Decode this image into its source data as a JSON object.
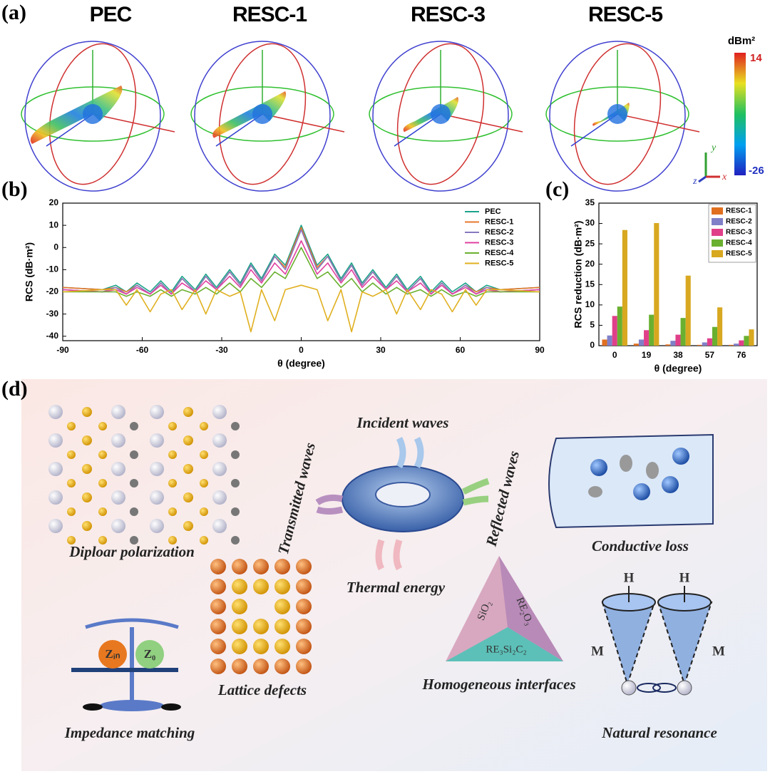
{
  "panel_labels": [
    "(a)",
    "(b)",
    "(c)",
    "(d)"
  ],
  "panel_a": {
    "titles": [
      "PEC",
      "RESC-1",
      "RESC-3",
      "RESC-5"
    ],
    "colorbar": {
      "label": "dBm²",
      "max": "14",
      "min": "-26"
    },
    "axes": [
      "y",
      "z",
      "x"
    ]
  },
  "chart_data": [
    {
      "type": "line",
      "x": [
        -90,
        -75,
        -70,
        -66,
        -62,
        -57,
        -53,
        -49,
        -45,
        -40,
        -36,
        -32,
        -27,
        -23,
        -19,
        -15,
        -10,
        -6,
        0,
        6,
        10,
        15,
        19,
        23,
        27,
        32,
        36,
        40,
        45,
        49,
        53,
        57,
        62,
        66,
        70,
        75,
        90
      ],
      "series": [
        {
          "name": "PEC",
          "color": "#1aa38a",
          "values": [
            -18,
            -19,
            -17,
            -20,
            -16,
            -20,
            -15,
            -20,
            -13,
            -19,
            -12,
            -18,
            -10,
            -16,
            -7,
            -14,
            -3,
            -8,
            10,
            -8,
            -3,
            -14,
            -7,
            -16,
            -10,
            -18,
            -12,
            -19,
            -13,
            -20,
            -15,
            -20,
            -16,
            -20,
            -17,
            -19,
            -18
          ]
        },
        {
          "name": "RESC-1",
          "color": "#e8772e",
          "values": [
            -18,
            -19,
            -18,
            -20,
            -17,
            -21,
            -16,
            -21,
            -14,
            -20,
            -13,
            -19,
            -11,
            -17,
            -8,
            -15,
            -4,
            -9,
            9,
            -9,
            -4,
            -15,
            -8,
            -17,
            -11,
            -19,
            -13,
            -20,
            -14,
            -21,
            -16,
            -21,
            -17,
            -20,
            -18,
            -19,
            -18
          ]
        },
        {
          "name": "RESC-2",
          "color": "#8878c0",
          "values": [
            -19,
            -20,
            -18,
            -21,
            -17,
            -21,
            -16,
            -21,
            -14,
            -20,
            -13,
            -19,
            -11,
            -17,
            -8,
            -15,
            -4,
            -10,
            8,
            -10,
            -4,
            -15,
            -8,
            -17,
            -11,
            -19,
            -13,
            -20,
            -14,
            -21,
            -16,
            -21,
            -17,
            -21,
            -18,
            -20,
            -19
          ]
        },
        {
          "name": "RESC-3",
          "color": "#e040a0",
          "values": [
            -19,
            -20,
            -19,
            -21,
            -18,
            -21,
            -17,
            -21,
            -16,
            -20,
            -15,
            -19,
            -13,
            -18,
            -10,
            -16,
            -7,
            -12,
            3,
            -12,
            -7,
            -16,
            -10,
            -18,
            -13,
            -19,
            -15,
            -20,
            -16,
            -21,
            -17,
            -21,
            -18,
            -21,
            -19,
            -20,
            -19
          ]
        },
        {
          "name": "RESC-4",
          "color": "#6ab030",
          "values": [
            -20,
            -20,
            -20,
            -22,
            -20,
            -22,
            -19,
            -22,
            -19,
            -21,
            -18,
            -21,
            -16,
            -20,
            -14,
            -18,
            -11,
            -14,
            0,
            -14,
            -11,
            -18,
            -14,
            -20,
            -16,
            -21,
            -18,
            -21,
            -19,
            -22,
            -19,
            -22,
            -20,
            -22,
            -20,
            -20,
            -20
          ]
        },
        {
          "name": "RESC-5",
          "color": "#e0b020",
          "values": [
            -20,
            -19,
            -19,
            -26,
            -19,
            -29,
            -21,
            -19,
            -28,
            -19,
            -30,
            -19,
            -22,
            -20,
            -38,
            -19,
            -33,
            -19,
            -17,
            -19,
            -33,
            -19,
            -38,
            -20,
            -22,
            -19,
            -30,
            -19,
            -28,
            -19,
            -21,
            -29,
            -19,
            -26,
            -19,
            -19,
            -20
          ]
        }
      ],
      "xlim": [
        -90,
        90
      ],
      "xticks": [
        -90,
        -60,
        -30,
        0,
        30,
        60,
        90
      ],
      "ylim": [
        -42,
        20
      ],
      "yticks": [
        20,
        10,
        0,
        -10,
        -20,
        -30,
        -40
      ],
      "xlabel": "θ (degree)",
      "ylabel": "RCS (dB·m²)",
      "legend": "upper right",
      "grid": false
    },
    {
      "type": "bar",
      "categories": [
        "0",
        "19",
        "38",
        "57",
        "76"
      ],
      "series": [
        {
          "name": "RESC-1",
          "color": "#e07020",
          "values": [
            1.5,
            0.5,
            0.3,
            0.2,
            0.2
          ]
        },
        {
          "name": "RESC-2",
          "color": "#8080c8",
          "values": [
            2.5,
            1.5,
            1.2,
            0.8,
            0.5
          ]
        },
        {
          "name": "RESC-3",
          "color": "#e0408a",
          "values": [
            7.3,
            3.8,
            2.7,
            1.8,
            1.3
          ]
        },
        {
          "name": "RESC-4",
          "color": "#6ab030",
          "values": [
            9.6,
            7.6,
            6.8,
            4.6,
            2.4
          ]
        },
        {
          "name": "RESC-5",
          "color": "#d8a820",
          "values": [
            28.4,
            30.1,
            17.2,
            9.4,
            4.0
          ]
        }
      ],
      "ylim": [
        0,
        35
      ],
      "yticks": [
        0,
        5,
        10,
        15,
        20,
        25,
        30,
        35
      ],
      "xlabel": "θ (degree)",
      "ylabel": "RCS reduction (dB·m²)",
      "legend": "upper right",
      "grid": false
    }
  ],
  "panel_d": {
    "labels": [
      "Incident  waves",
      "Transmitted waves",
      "Reflected waves",
      "Thermal energy",
      "Diploar polarization",
      "Conductive loss",
      "Lattice defects",
      "Homogeneous interfaces",
      "Impedance matching",
      "Natural resonance"
    ],
    "chem": [
      "SiO₂",
      "RE₂O₃",
      "RE₃Si₂C₂"
    ],
    "symbols": [
      "Zᵢₙ",
      "Z₀",
      "H",
      "H",
      "M",
      "M"
    ]
  }
}
